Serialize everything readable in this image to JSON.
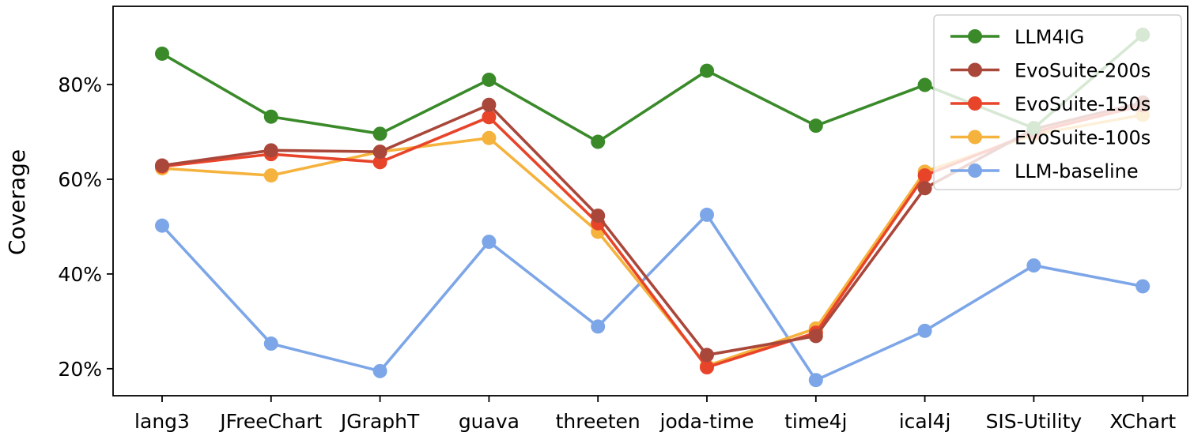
{
  "chart_data": {
    "type": "line",
    "ylabel": "Coverage",
    "xlabel": "",
    "categories": [
      "lang3",
      "JFreeChart",
      "JGraphT",
      "guava",
      "threeten",
      "joda-time",
      "time4j",
      "ical4j",
      "SIS-Utility",
      "XChart"
    ],
    "y_ticks": [
      20,
      40,
      60,
      80
    ],
    "y_tick_labels": [
      "20%",
      "40%",
      "60%",
      "80%"
    ],
    "ylim": [
      14.3,
      96.5
    ],
    "grid": false,
    "legend_position": "top-right",
    "series": [
      {
        "name": "LLM4IG",
        "color": "#3a8a2a",
        "values": [
          86.5,
          73.2,
          69.6,
          81.0,
          67.9,
          82.9,
          71.3,
          79.9,
          70.8,
          90.5
        ]
      },
      {
        "name": "EvoSuite-200s",
        "color": "#a9473b",
        "values": [
          62.9,
          66.1,
          65.8,
          75.7,
          52.3,
          22.9,
          26.9,
          58.1,
          70.6,
          76.2
        ]
      },
      {
        "name": "EvoSuite-150s",
        "color": "#e8442a",
        "values": [
          62.7,
          65.3,
          63.6,
          73.1,
          50.7,
          20.3,
          27.6,
          60.8,
          69.9,
          75.6
        ]
      },
      {
        "name": "EvoSuite-100s",
        "color": "#f5b23c",
        "values": [
          62.3,
          60.8,
          65.8,
          68.7,
          48.9,
          20.6,
          28.5,
          61.6,
          69.4,
          73.6
        ]
      },
      {
        "name": "LLM-baseline",
        "color": "#7da6e8",
        "values": [
          50.2,
          25.3,
          19.5,
          46.8,
          28.9,
          52.5,
          17.6,
          28.0,
          41.8,
          37.4
        ]
      }
    ]
  }
}
